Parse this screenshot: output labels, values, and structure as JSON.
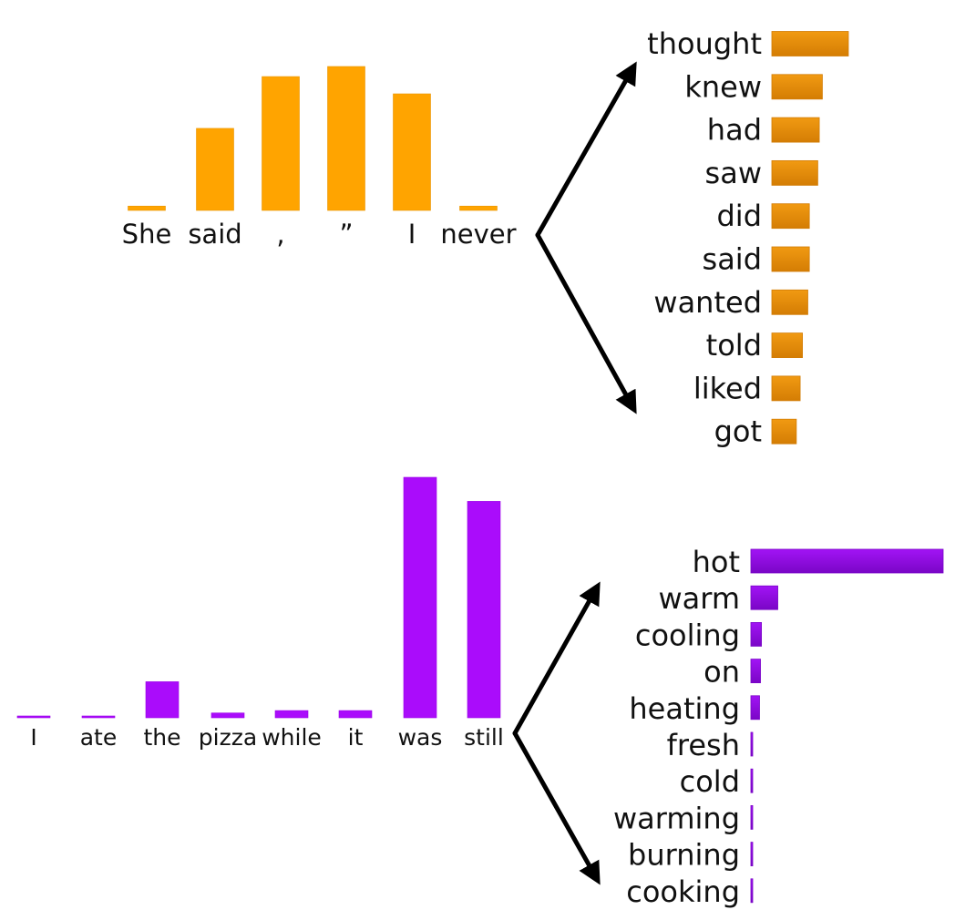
{
  "chart_data": [
    {
      "type": "bar",
      "title": "",
      "xlabel": "",
      "ylabel": "",
      "ylim": [
        0,
        1
      ],
      "categories": [
        "She",
        "said",
        ",",
        "”",
        "I",
        "never"
      ],
      "values": [
        0.03,
        0.57,
        0.93,
        1.0,
        0.81,
        0.03
      ],
      "colors": {
        "bar": "#ffa400"
      }
    },
    {
      "type": "bar",
      "title": "",
      "xlabel": "",
      "ylabel": "",
      "xlim": [
        0,
        1
      ],
      "orientation": "horizontal",
      "categories": [
        "thought",
        "knew",
        "had",
        "saw",
        "did",
        "said",
        "wanted",
        "told",
        "liked",
        "got"
      ],
      "values": [
        1.0,
        0.66,
        0.62,
        0.6,
        0.49,
        0.49,
        0.47,
        0.4,
        0.37,
        0.32
      ],
      "colors": {
        "bar": "#ef9310",
        "barDark": "#d27c05"
      }
    },
    {
      "type": "bar",
      "title": "",
      "xlabel": "",
      "ylabel": "",
      "ylim": [
        0,
        1
      ],
      "categories": [
        "I",
        "ate",
        "the",
        "pizza",
        "while",
        "it",
        "was",
        "still"
      ],
      "values": [
        0.005,
        0.005,
        0.15,
        0.02,
        0.03,
        0.03,
        1.0,
        0.9
      ],
      "colors": {
        "bar": "#aa0cfb"
      }
    },
    {
      "type": "bar",
      "title": "",
      "xlabel": "",
      "ylabel": "",
      "xlim": [
        0,
        1
      ],
      "orientation": "horizontal",
      "categories": [
        "hot",
        "warm",
        "cooling",
        "on",
        "heating",
        "fresh",
        "cold",
        "warming",
        "burning",
        "cooking"
      ],
      "values": [
        1.0,
        0.14,
        0.055,
        0.05,
        0.045,
        0.006,
        0.006,
        0.006,
        0.006,
        0.006
      ],
      "colors": {
        "bar": "#9a10f0",
        "barDark": "#7a05c8"
      }
    }
  ]
}
